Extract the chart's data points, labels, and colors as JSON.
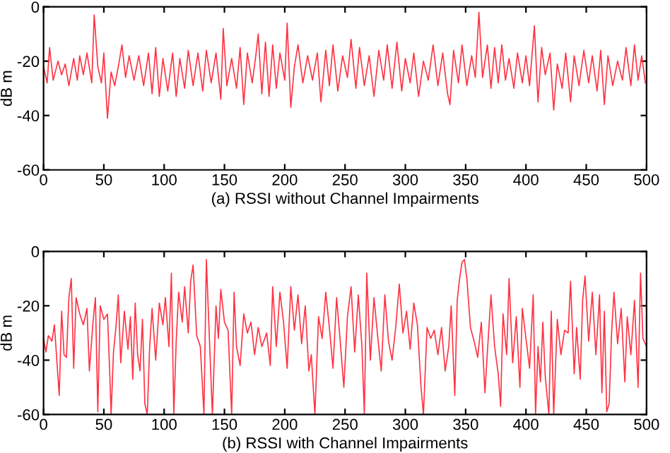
{
  "chart_data": [
    {
      "type": "line",
      "xlabel": "(a) RSSI without Channel Impairments",
      "ylabel": "dB m",
      "xlim": [
        0,
        500
      ],
      "ylim": [
        -60,
        0
      ],
      "xticks": [
        0,
        50,
        100,
        150,
        200,
        250,
        300,
        350,
        400,
        450,
        500
      ],
      "yticks": [
        -60,
        -40,
        -20,
        0
      ],
      "grid": false,
      "series": [
        {
          "color": "#ff3344",
          "x": [
            0,
            3,
            5,
            8,
            12,
            15,
            18,
            21,
            25,
            28,
            30,
            33,
            36,
            40,
            42,
            45,
            48,
            50,
            53,
            56,
            59,
            62,
            65,
            68,
            71,
            75,
            79,
            83,
            87,
            90,
            93,
            96,
            99,
            103,
            107,
            110,
            113,
            117,
            120,
            124,
            128,
            132,
            135,
            139,
            143,
            147,
            149,
            152,
            156,
            160,
            163,
            166,
            169,
            173,
            176,
            178,
            181,
            184,
            187,
            190,
            193,
            196,
            200,
            202,
            205,
            208,
            211,
            215,
            219,
            223,
            227,
            230,
            234,
            237,
            240,
            244,
            248,
            252,
            255,
            259,
            262,
            266,
            270,
            274,
            278,
            282,
            285,
            289,
            293,
            297,
            300,
            304,
            307,
            311,
            315,
            319,
            323,
            327,
            331,
            335,
            337,
            340,
            344,
            347,
            351,
            355,
            358,
            361,
            364,
            368,
            371,
            374,
            377,
            380,
            383,
            386,
            390,
            393,
            397,
            400,
            403,
            407,
            410,
            413,
            416,
            420,
            423,
            426,
            430,
            433,
            437,
            440,
            444,
            448,
            452,
            455,
            459,
            462,
            465,
            468,
            472,
            476,
            480,
            483,
            487,
            490,
            493,
            496,
            499
          ],
          "values": [
            -22,
            -28,
            -15,
            -27,
            -20,
            -25,
            -21,
            -29,
            -19,
            -27,
            -18,
            -25,
            -17,
            -28,
            -3,
            -22,
            -28,
            -17,
            -41,
            -24,
            -29,
            -22,
            -14,
            -26,
            -18,
            -27,
            -18,
            -29,
            -17,
            -32,
            -15,
            -33,
            -19,
            -31,
            -17,
            -33,
            -19,
            -30,
            -16,
            -29,
            -17,
            -31,
            -16,
            -28,
            -17,
            -34,
            -8,
            -29,
            -19,
            -30,
            -15,
            -36,
            -17,
            -28,
            -18,
            -10,
            -32,
            -13,
            -33,
            -14,
            -30,
            -17,
            -27,
            -6,
            -37,
            -22,
            -14,
            -28,
            -18,
            -27,
            -17,
            -35,
            -16,
            -29,
            -14,
            -31,
            -18,
            -26,
            -12,
            -30,
            -15,
            -29,
            -18,
            -33,
            -16,
            -27,
            -14,
            -30,
            -13,
            -31,
            -19,
            -28,
            -17,
            -33,
            -20,
            -27,
            -14,
            -29,
            -17,
            -32,
            -36,
            -16,
            -28,
            -14,
            -29,
            -18,
            -26,
            -2,
            -26,
            -14,
            -30,
            -15,
            -28,
            -14,
            -27,
            -19,
            -30,
            -17,
            -28,
            -18,
            -29,
            -7,
            -35,
            -15,
            -25,
            -17,
            -38,
            -21,
            -30,
            -17,
            -35,
            -18,
            -29,
            -16,
            -28,
            -18,
            -31,
            -16,
            -36,
            -18,
            -29,
            -20,
            -27,
            -15,
            -29,
            -14,
            -27,
            -18,
            -28
          ]
        }
      ]
    },
    {
      "type": "line",
      "xlabel": "(b) RSSI with Channel Impairments",
      "ylabel": "dB m",
      "xlim": [
        0,
        500
      ],
      "ylim": [
        -60,
        0
      ],
      "xticks": [
        0,
        50,
        100,
        150,
        200,
        250,
        300,
        350,
        400,
        450,
        500
      ],
      "yticks": [
        -60,
        -40,
        -20,
        0
      ],
      "grid": false,
      "series": [
        {
          "color": "#ff3344",
          "x": [
            0,
            2,
            4,
            7,
            9,
            11,
            13,
            15,
            17,
            19,
            21,
            23,
            25,
            27,
            30,
            33,
            36,
            38,
            41,
            43,
            45,
            47,
            50,
            53,
            55,
            56,
            58,
            60,
            62,
            64,
            67,
            70,
            72,
            74,
            76,
            78,
            80,
            82,
            84,
            86,
            88,
            90,
            93,
            96,
            99,
            101,
            104,
            106,
            108,
            110,
            112,
            115,
            117,
            120,
            122,
            124,
            127,
            130,
            133,
            135,
            137,
            140,
            143,
            145,
            147,
            150,
            153,
            156,
            158,
            160,
            163,
            166,
            169,
            172,
            175,
            178,
            181,
            185,
            188,
            190,
            193,
            196,
            199,
            202,
            205,
            208,
            211,
            214,
            217,
            220,
            222,
            225,
            228,
            231,
            234,
            237,
            240,
            243,
            246,
            249,
            252,
            255,
            258,
            261,
            264,
            266,
            268,
            271,
            274,
            277,
            280,
            283,
            286,
            289,
            292,
            295,
            298,
            301,
            304,
            307,
            310,
            313,
            315,
            318,
            321,
            324,
            327,
            330,
            333,
            336,
            338,
            341,
            343,
            345,
            347,
            349,
            351,
            354,
            357,
            360,
            363,
            366,
            369,
            371,
            374,
            377,
            379,
            381,
            384,
            386,
            389,
            392,
            395,
            397,
            400,
            403,
            406,
            408,
            410,
            412,
            414,
            416,
            419,
            421,
            423,
            426,
            429,
            432,
            435,
            437,
            440,
            442,
            445,
            447,
            449,
            452,
            455,
            458,
            461,
            463,
            465,
            467,
            469,
            471,
            473,
            476,
            479,
            482,
            484,
            487,
            490,
            493,
            495,
            497,
            500
          ],
          "values": [
            -32,
            -37,
            -31,
            -33,
            -27,
            -40,
            -53,
            -22,
            -38,
            -39,
            -17,
            -10,
            -43,
            -17,
            -23,
            -27,
            -21,
            -44,
            -26,
            -17,
            -59,
            -20,
            -25,
            -23,
            -46,
            -60,
            -37,
            -28,
            -16,
            -41,
            -22,
            -36,
            -24,
            -47,
            -19,
            -38,
            -44,
            -25,
            -56,
            -60,
            -35,
            -21,
            -40,
            -19,
            -27,
            -17,
            -35,
            -8,
            -60,
            -33,
            -15,
            -26,
            -13,
            -30,
            -11,
            -5,
            -31,
            -35,
            -60,
            -3,
            -26,
            -60,
            -20,
            -32,
            -14,
            -26,
            -29,
            -60,
            -15,
            -35,
            -42,
            -23,
            -30,
            -26,
            -38,
            -28,
            -35,
            -30,
            -42,
            -13,
            -35,
            -15,
            -26,
            -43,
            -13,
            -29,
            -16,
            -34,
            -20,
            -44,
            -38,
            -60,
            -24,
            -32,
            -15,
            -28,
            -43,
            -17,
            -33,
            -50,
            -24,
            -13,
            -37,
            -16,
            -35,
            -60,
            -8,
            -40,
            -17,
            -31,
            -44,
            -16,
            -33,
            -40,
            -28,
            -12,
            -30,
            -22,
            -36,
            -19,
            -27,
            -50,
            -60,
            -28,
            -32,
            -29,
            -38,
            -28,
            -44,
            -35,
            -20,
            -53,
            -18,
            -10,
            -4,
            -3,
            -10,
            -28,
            -33,
            -39,
            -26,
            -52,
            -30,
            -16,
            -35,
            -45,
            -57,
            -23,
            -38,
            -10,
            -41,
            -24,
            -50,
            -21,
            -32,
            -43,
            -16,
            -60,
            -35,
            -48,
            -26,
            -46,
            -60,
            -22,
            -60,
            -25,
            -38,
            -29,
            -30,
            -11,
            -45,
            -28,
            -47,
            -18,
            -9,
            -33,
            -15,
            -38,
            -16,
            -52,
            -22,
            -59,
            -56,
            -30,
            -15,
            -34,
            -21,
            -48,
            -24,
            -38,
            -18,
            -50,
            -8,
            -32,
            -35
          ]
        }
      ]
    }
  ]
}
